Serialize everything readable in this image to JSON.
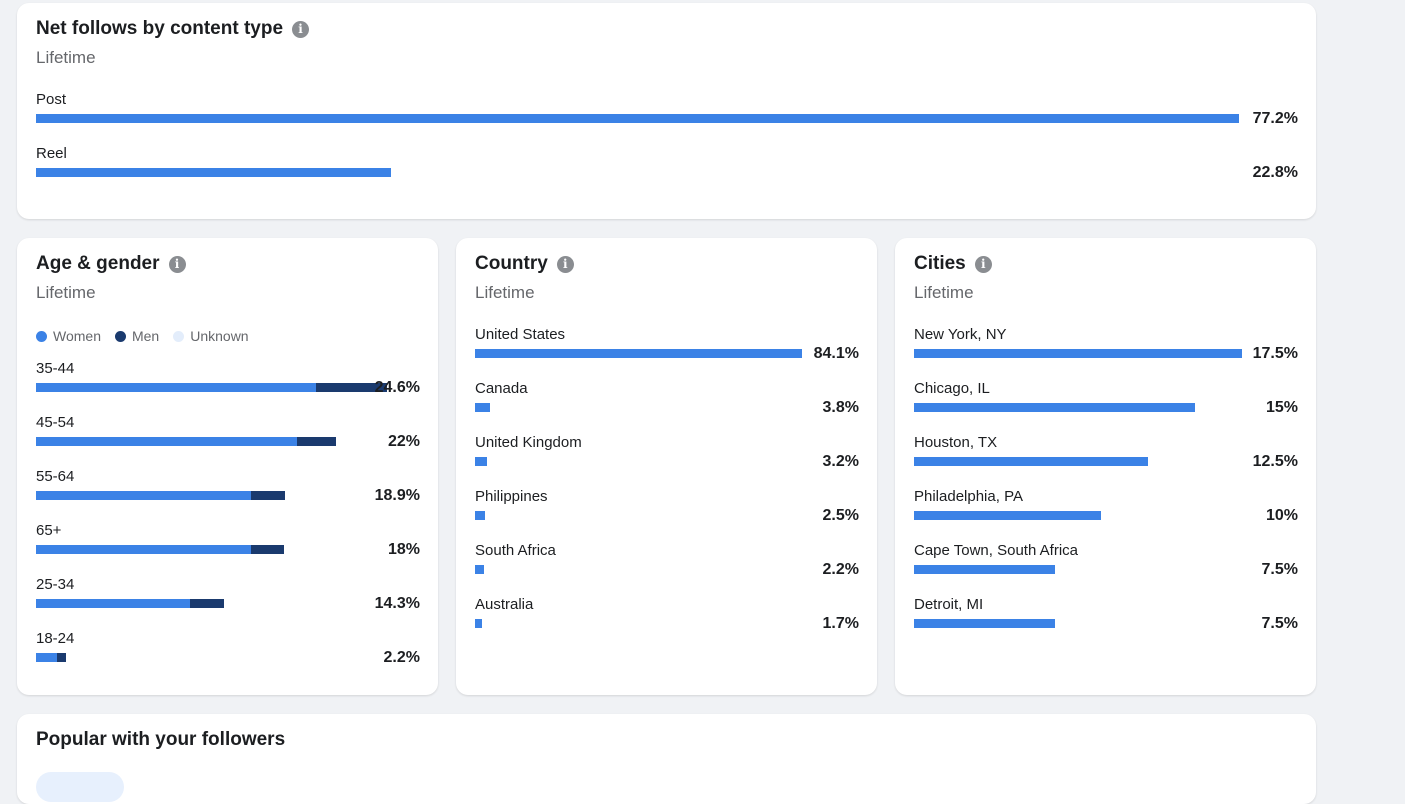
{
  "colors": {
    "women": "#3b82e6",
    "men": "#1a3a6e",
    "unknown": "#e3edfb"
  },
  "net_follows": {
    "title": "Net follows by content type",
    "subtitle": "Lifetime",
    "rows": [
      {
        "label": "Post",
        "value": "77.2%",
        "fraction": 0.772
      },
      {
        "label": "Reel",
        "value": "22.8%",
        "fraction": 0.228
      }
    ]
  },
  "age_gender": {
    "title": "Age & gender",
    "subtitle": "Lifetime",
    "legend": {
      "women": "Women",
      "men": "Men",
      "unknown": "Unknown"
    },
    "rows": [
      {
        "label": "35-44",
        "value": "24.6%",
        "women": 0.196,
        "men": 0.05
      },
      {
        "label": "45-54",
        "value": "22%",
        "women": 0.183,
        "men": 0.027
      },
      {
        "label": "55-64",
        "value": "18.9%",
        "women": 0.151,
        "men": 0.024
      },
      {
        "label": "65+",
        "value": "18%",
        "women": 0.151,
        "men": 0.023
      },
      {
        "label": "25-34",
        "value": "14.3%",
        "women": 0.108,
        "men": 0.024
      },
      {
        "label": "18-24",
        "value": "2.2%",
        "women": 0.015,
        "men": 0.006
      }
    ]
  },
  "country": {
    "title": "Country",
    "subtitle": "Lifetime",
    "rows": [
      {
        "label": "United States",
        "value": "84.1%",
        "fraction": 0.841
      },
      {
        "label": "Canada",
        "value": "3.8%",
        "fraction": 0.038
      },
      {
        "label": "United Kingdom",
        "value": "3.2%",
        "fraction": 0.032
      },
      {
        "label": "Philippines",
        "value": "2.5%",
        "fraction": 0.025
      },
      {
        "label": "South Africa",
        "value": "2.2%",
        "fraction": 0.022
      },
      {
        "label": "Australia",
        "value": "1.7%",
        "fraction": 0.017
      }
    ]
  },
  "cities": {
    "title": "Cities",
    "subtitle": "Lifetime",
    "rows": [
      {
        "label": "New York, NY",
        "value": "17.5%",
        "fraction": 0.175
      },
      {
        "label": "Chicago, IL",
        "value": "15%",
        "fraction": 0.15
      },
      {
        "label": "Houston, TX",
        "value": "12.5%",
        "fraction": 0.125
      },
      {
        "label": "Philadelphia, PA",
        "value": "10%",
        "fraction": 0.1
      },
      {
        "label": "Cape Town, South Africa",
        "value": "7.5%",
        "fraction": 0.075
      },
      {
        "label": "Detroit, MI",
        "value": "7.5%",
        "fraction": 0.075
      }
    ]
  },
  "popular": {
    "title": "Popular with your followers"
  }
}
